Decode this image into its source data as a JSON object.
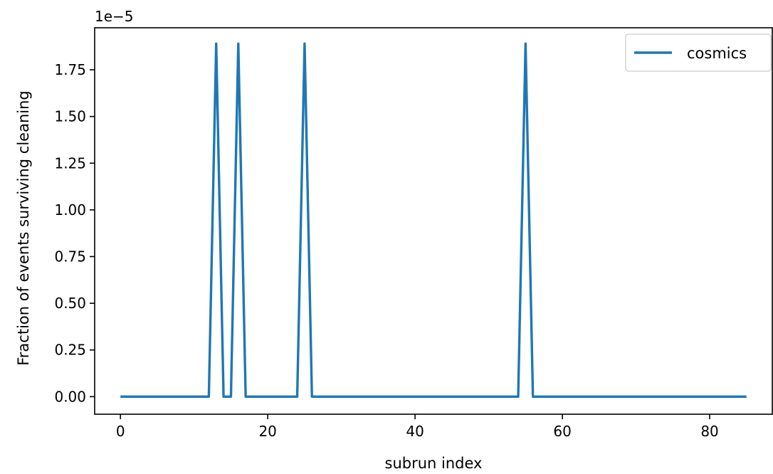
{
  "chart_data": {
    "type": "line",
    "title": "",
    "xlabel": "subrun index",
    "ylabel": "Fraction of events surviving cleaning",
    "offset_label": "1e−5",
    "xlim": [
      -3.5,
      88.5
    ],
    "ylim": [
      -9.4e-07,
      1.975e-05
    ],
    "x_ticks": [
      0,
      20,
      40,
      60,
      80
    ],
    "x_tick_labels": [
      "0",
      "20",
      "40",
      "60",
      "80"
    ],
    "y_ticks": [
      0,
      2.5e-06,
      5e-06,
      7.5e-06,
      1e-05,
      1.25e-05,
      1.5e-05,
      1.75e-05
    ],
    "y_tick_labels": [
      "0.00",
      "0.25",
      "0.50",
      "0.75",
      "1.00",
      "1.25",
      "1.50",
      "1.75"
    ],
    "grid": false,
    "legend_position": "top-right",
    "series": [
      {
        "name": "cosmics",
        "color": "#1f77b4",
        "x": [
          0,
          1,
          2,
          3,
          4,
          5,
          6,
          7,
          8,
          9,
          10,
          11,
          12,
          13,
          14,
          15,
          16,
          17,
          18,
          19,
          20,
          21,
          22,
          23,
          24,
          25,
          26,
          27,
          28,
          29,
          30,
          31,
          32,
          33,
          34,
          35,
          36,
          37,
          38,
          39,
          40,
          41,
          42,
          43,
          44,
          45,
          46,
          47,
          48,
          49,
          50,
          51,
          52,
          53,
          54,
          55,
          56,
          57,
          58,
          59,
          60,
          61,
          62,
          63,
          64,
          65,
          66,
          67,
          68,
          69,
          70,
          71,
          72,
          73,
          74,
          75,
          76,
          77,
          78,
          79,
          80,
          81,
          82,
          83,
          84,
          85
        ],
        "values": [
          0,
          0,
          0,
          0,
          0,
          0,
          0,
          0,
          0,
          0,
          0,
          0,
          0,
          1.89e-05,
          0,
          0,
          1.89e-05,
          0,
          0,
          0,
          0,
          0,
          0,
          0,
          0,
          1.89e-05,
          0,
          0,
          0,
          0,
          0,
          0,
          0,
          0,
          0,
          0,
          0,
          0,
          0,
          0,
          0,
          0,
          0,
          0,
          0,
          0,
          0,
          0,
          0,
          0,
          0,
          0,
          0,
          0,
          0,
          1.89e-05,
          0,
          0,
          0,
          0,
          0,
          0,
          0,
          0,
          0,
          0,
          0,
          0,
          0,
          0,
          0,
          0,
          0,
          0,
          0,
          0,
          0,
          0,
          0,
          0,
          0,
          0,
          0,
          0,
          0,
          0
        ]
      }
    ]
  }
}
